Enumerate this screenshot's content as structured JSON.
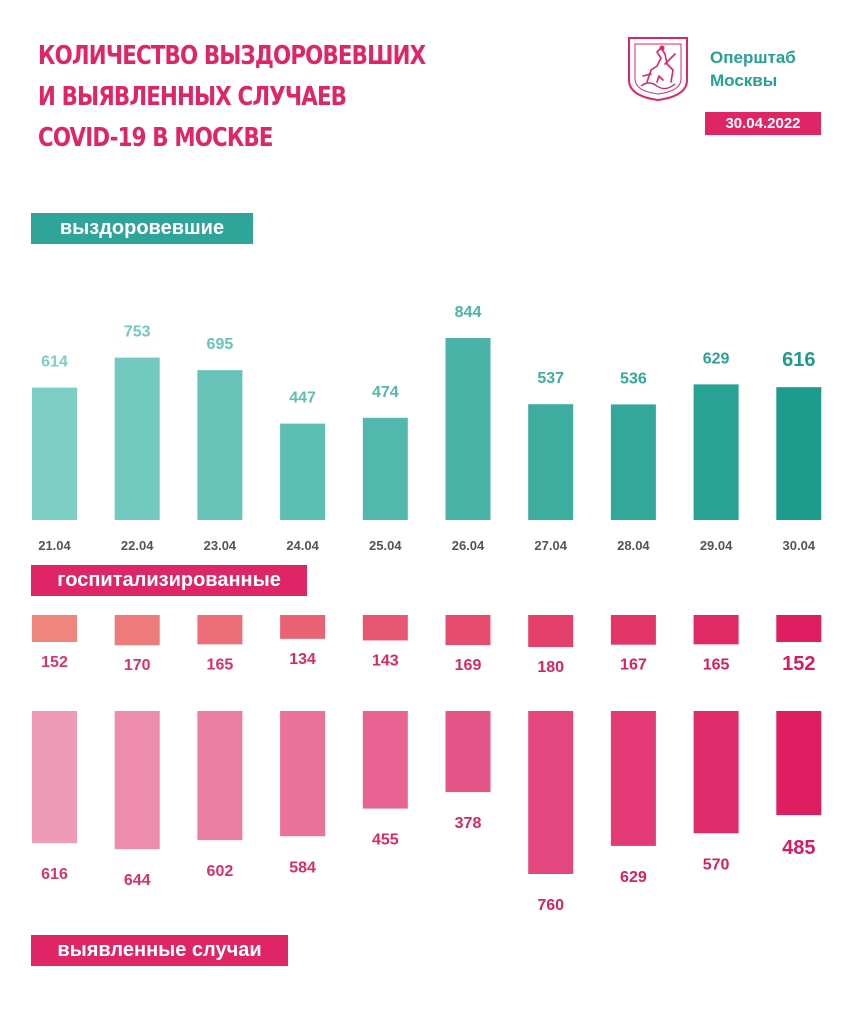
{
  "header": {
    "title_lines": [
      "Количество выздоровевших",
      "и выявленных случаев",
      "COVID-19 в Москве"
    ],
    "brand_lines": [
      "Оперштаб",
      "Москвы"
    ],
    "date": "30.04.2022",
    "emblem_icon": "moscow-coat-of-arms-icon"
  },
  "labels": {
    "recovered": "выздоровевшие",
    "hospitalized": "госпитализированные",
    "cases": "выявленные случаи"
  },
  "colors": {
    "accent_pink": "#e02567",
    "accent_teal": "#25a192"
  },
  "chart_data": {
    "type": "bar",
    "categories": [
      "21.04",
      "22.04",
      "23.04",
      "24.04",
      "25.04",
      "26.04",
      "27.04",
      "28.04",
      "29.04",
      "30.04"
    ],
    "series": [
      {
        "name": "выздоровевшие",
        "values": [
          614,
          753,
          695,
          447,
          474,
          844,
          537,
          536,
          629,
          616
        ],
        "color_from": "#7dcfc6",
        "color_to": "#1d9c8d"
      },
      {
        "name": "госпитализированные",
        "values": [
          152,
          170,
          165,
          134,
          143,
          169,
          180,
          167,
          165,
          152
        ],
        "color_from": "#f0857e",
        "color_to": "#df1e62"
      },
      {
        "name": "выявленные случаи",
        "values": [
          616,
          644,
          602,
          584,
          455,
          378,
          760,
          629,
          570,
          485
        ],
        "color_from": "#ef9ab6",
        "color_to": "#df1e62"
      }
    ],
    "title": "Количество выздоровевших и выявленных случаев COVID-19 в Москве",
    "xlabel": "",
    "ylabel": ""
  }
}
